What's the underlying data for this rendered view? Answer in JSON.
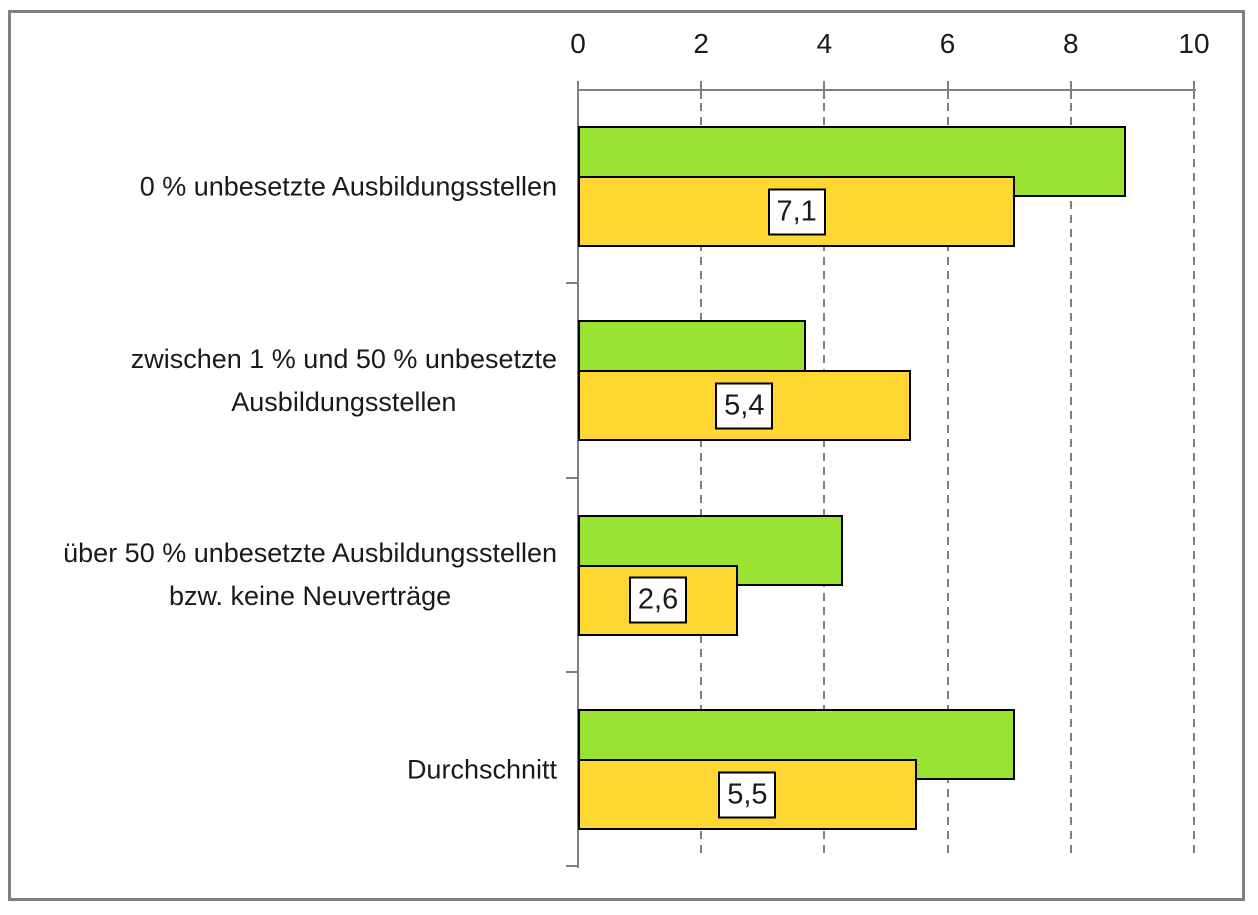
{
  "chart_data": {
    "type": "bar",
    "orientation": "horizontal",
    "title": "",
    "categories": [
      {
        "lines": [
          "0 % unbesetzte Ausbildungsstellen"
        ]
      },
      {
        "lines": [
          "zwischen 1 % und 50 % unbesetzte",
          "Ausbildungsstellen"
        ]
      },
      {
        "lines": [
          "über 50 % unbesetzte Ausbildungsstellen",
          "bzw. keine Neuverträge"
        ]
      },
      {
        "lines": [
          "Durchschnitt"
        ]
      }
    ],
    "series": [
      {
        "name": "green-series",
        "color": "#9BE332",
        "values": [
          8.9,
          3.7,
          4.3,
          7.1
        ],
        "data_labels": []
      },
      {
        "name": "yellow-series",
        "color": "#FFD732",
        "values": [
          7.1,
          5.4,
          2.6,
          5.5
        ],
        "data_labels": [
          "7,1",
          "5,4",
          "2,6",
          "5,5"
        ]
      }
    ],
    "xlim": [
      0,
      10
    ],
    "xticks": [
      0,
      2,
      4,
      6,
      8,
      10
    ],
    "xtick_labels": [
      "0",
      "2",
      "4",
      "6",
      "8",
      "10"
    ],
    "axis_position": "top",
    "grid": "dashed-vertical",
    "legend": "none",
    "colors": {
      "axis": "#808080",
      "grid": "#808080",
      "bar_border": "#000000",
      "text": "#1a1a1a",
      "frame_border": "#808080",
      "background": "#FFFFFF"
    }
  }
}
